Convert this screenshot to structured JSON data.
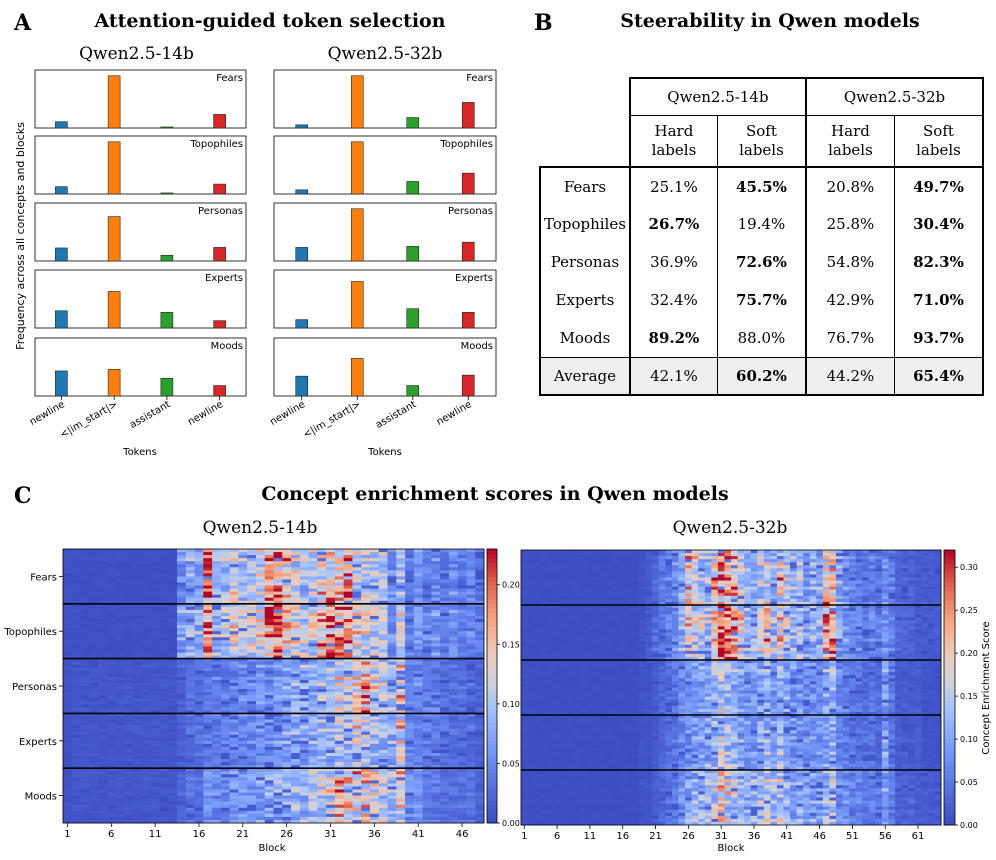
{
  "panel_a": {
    "letter": "A",
    "title": "Attention-guided token selection",
    "ylabel": "Frequency across all concepts and blocks",
    "xlabel": "Tokens"
  },
  "panel_b": {
    "letter": "B",
    "title": "Steerability in Qwen models"
  },
  "panel_c": {
    "letter": "C",
    "title": "Concept enrichment scores in Qwen models",
    "xlabel": "Block",
    "cbar_label": "Concept Enrichment Score"
  },
  "colors": {
    "newline1": "#1f77b4",
    "im_start": "#ff7f0e",
    "assistant": "#2ca02c",
    "newline2": "#d62728"
  },
  "chart_data": [
    {
      "type": "bar",
      "id": "token-selection-qwen14b",
      "title": "Qwen2.5-14b",
      "xlabel": "Tokens",
      "ylabel": "Frequency across all concepts and blocks",
      "categories": [
        "newline",
        "<|im_start|>",
        "assistant",
        "newline"
      ],
      "subplots": [
        {
          "label": "Fears",
          "values": [
            0.12,
            1.0,
            0.02,
            0.26
          ]
        },
        {
          "label": "Topophiles",
          "values": [
            0.14,
            1.0,
            0.02,
            0.19
          ]
        },
        {
          "label": "Personas",
          "values": [
            0.25,
            0.85,
            0.11,
            0.26
          ]
        },
        {
          "label": "Experts",
          "values": [
            0.33,
            0.7,
            0.3,
            0.14
          ]
        },
        {
          "label": "Moods",
          "values": [
            0.48,
            0.51,
            0.34,
            0.2
          ]
        }
      ]
    },
    {
      "type": "bar",
      "id": "token-selection-qwen32b",
      "title": "Qwen2.5-32b",
      "xlabel": "Tokens",
      "ylabel": "Frequency across all concepts and blocks",
      "categories": [
        "newline",
        "<|im_start|>",
        "assistant",
        "newline"
      ],
      "subplots": [
        {
          "label": "Fears",
          "values": [
            0.06,
            1.0,
            0.2,
            0.49
          ]
        },
        {
          "label": "Topophiles",
          "values": [
            0.08,
            1.0,
            0.24,
            0.4
          ]
        },
        {
          "label": "Personas",
          "values": [
            0.26,
            1.0,
            0.28,
            0.36
          ]
        },
        {
          "label": "Experts",
          "values": [
            0.16,
            0.89,
            0.37,
            0.3
          ]
        },
        {
          "label": "Moods",
          "values": [
            0.38,
            0.72,
            0.2,
            0.4
          ]
        }
      ]
    },
    {
      "type": "table",
      "id": "steerability-table",
      "title": "Steerability in Qwen models",
      "models": [
        "Qwen2.5-14b",
        "Qwen2.5-32b"
      ],
      "sublabels": [
        [
          "Hard",
          "labels"
        ],
        [
          "Soft",
          "labels"
        ],
        [
          "Hard",
          "labels"
        ],
        [
          "Soft",
          "labels"
        ]
      ],
      "rows": [
        {
          "concept": "Fears",
          "values": [
            "25.1%",
            "45.5%",
            "20.8%",
            "49.7%"
          ],
          "bold": [
            false,
            true,
            false,
            true
          ]
        },
        {
          "concept": "Topophiles",
          "values": [
            "26.7%",
            "19.4%",
            "25.8%",
            "30.4%"
          ],
          "bold": [
            true,
            false,
            false,
            true
          ]
        },
        {
          "concept": "Personas",
          "values": [
            "36.9%",
            "72.6%",
            "54.8%",
            "82.3%"
          ],
          "bold": [
            false,
            true,
            false,
            true
          ]
        },
        {
          "concept": "Experts",
          "values": [
            "32.4%",
            "75.7%",
            "42.9%",
            "71.0%"
          ],
          "bold": [
            false,
            true,
            false,
            true
          ]
        },
        {
          "concept": "Moods",
          "values": [
            "89.2%",
            "88.0%",
            "76.7%",
            "93.7%"
          ],
          "bold": [
            true,
            false,
            false,
            true
          ]
        },
        {
          "concept": "Average",
          "values": [
            "42.1%",
            "60.2%",
            "44.2%",
            "65.4%"
          ],
          "bold": [
            false,
            true,
            false,
            true
          ]
        }
      ]
    },
    {
      "type": "heatmap",
      "id": "enrichment-qwen14b",
      "title": "Qwen2.5-14b",
      "xlabel": "Block",
      "rows": [
        "Fears",
        "Topophiles",
        "Personas",
        "Experts",
        "Moods"
      ],
      "n_blocks": 48,
      "xticks": [
        "1",
        "6",
        "11",
        "16",
        "21",
        "26",
        "31",
        "36",
        "41",
        "46"
      ],
      "colorbar": {
        "min": 0,
        "max": 0.23,
        "ticks": [
          "0.00",
          "0.05",
          "0.10",
          "0.15",
          "0.20"
        ]
      },
      "profiles": {
        "Fears": [
          0.005,
          0.005,
          0.004,
          0.004,
          0.004,
          0.004,
          0.004,
          0.004,
          0.004,
          0.004,
          0.004,
          0.004,
          0.004,
          0.06,
          0.08,
          0.07,
          0.2,
          0.09,
          0.1,
          0.12,
          0.09,
          0.11,
          0.12,
          0.17,
          0.19,
          0.14,
          0.12,
          0.1,
          0.11,
          0.15,
          0.17,
          0.16,
          0.18,
          0.13,
          0.12,
          0.1,
          0.11,
          0.06,
          0.1,
          0.04,
          0.06,
          0.05,
          0.06,
          0.04,
          0.06,
          0.04,
          0.05,
          0.04
        ],
        "Topophiles": [
          0.005,
          0.005,
          0.004,
          0.004,
          0.004,
          0.004,
          0.004,
          0.004,
          0.004,
          0.004,
          0.004,
          0.004,
          0.004,
          0.07,
          0.09,
          0.08,
          0.19,
          0.1,
          0.11,
          0.13,
          0.1,
          0.12,
          0.13,
          0.2,
          0.21,
          0.15,
          0.13,
          0.11,
          0.12,
          0.17,
          0.19,
          0.17,
          0.17,
          0.13,
          0.12,
          0.11,
          0.12,
          0.06,
          0.11,
          0.05,
          0.06,
          0.05,
          0.06,
          0.04,
          0.06,
          0.04,
          0.05,
          0.04
        ],
        "Personas": [
          0.005,
          0.01,
          0.01,
          0.01,
          0.01,
          0.01,
          0.01,
          0.01,
          0.01,
          0.01,
          0.01,
          0.01,
          0.01,
          0.02,
          0.03,
          0.03,
          0.04,
          0.04,
          0.04,
          0.05,
          0.05,
          0.05,
          0.06,
          0.06,
          0.06,
          0.07,
          0.08,
          0.08,
          0.08,
          0.09,
          0.09,
          0.11,
          0.1,
          0.13,
          0.17,
          0.12,
          0.1,
          0.08,
          0.13,
          0.05,
          0.05,
          0.04,
          0.04,
          0.03,
          0.03,
          0.03,
          0.03,
          0.02
        ],
        "Experts": [
          0.005,
          0.01,
          0.01,
          0.01,
          0.01,
          0.01,
          0.01,
          0.01,
          0.01,
          0.01,
          0.01,
          0.01,
          0.01,
          0.02,
          0.03,
          0.03,
          0.04,
          0.04,
          0.04,
          0.05,
          0.05,
          0.05,
          0.06,
          0.06,
          0.06,
          0.07,
          0.08,
          0.08,
          0.08,
          0.09,
          0.09,
          0.11,
          0.1,
          0.12,
          0.13,
          0.1,
          0.09,
          0.08,
          0.13,
          0.05,
          0.05,
          0.04,
          0.04,
          0.03,
          0.03,
          0.03,
          0.03,
          0.02
        ],
        "Moods": [
          0.005,
          0.01,
          0.01,
          0.01,
          0.01,
          0.01,
          0.01,
          0.01,
          0.01,
          0.01,
          0.01,
          0.01,
          0.01,
          0.02,
          0.03,
          0.03,
          0.05,
          0.05,
          0.05,
          0.06,
          0.06,
          0.06,
          0.07,
          0.08,
          0.08,
          0.08,
          0.09,
          0.09,
          0.1,
          0.11,
          0.12,
          0.16,
          0.13,
          0.14,
          0.14,
          0.12,
          0.1,
          0.09,
          0.13,
          0.05,
          0.05,
          0.04,
          0.04,
          0.03,
          0.03,
          0.03,
          0.03,
          0.02
        ]
      }
    },
    {
      "type": "heatmap",
      "id": "enrichment-qwen32b",
      "title": "Qwen2.5-32b",
      "xlabel": "Block",
      "rows": [
        "Fears",
        "Topophiles",
        "Personas",
        "Experts",
        "Moods"
      ],
      "n_blocks": 64,
      "xticks": [
        "1",
        "6",
        "11",
        "16",
        "21",
        "26",
        "31",
        "36",
        "41",
        "46",
        "51",
        "56",
        "61"
      ],
      "colorbar": {
        "min": 0,
        "max": 0.32,
        "ticks": [
          "0.00",
          "0.05",
          "0.10",
          "0.15",
          "0.20",
          "0.25",
          "0.30"
        ]
      },
      "profiles": {
        "Fears": [
          0.004,
          0.004,
          0.004,
          0.004,
          0.004,
          0.004,
          0.004,
          0.004,
          0.004,
          0.004,
          0.004,
          0.004,
          0.004,
          0.004,
          0.004,
          0.004,
          0.004,
          0.004,
          0.01,
          0.02,
          0.04,
          0.05,
          0.06,
          0.08,
          0.12,
          0.2,
          0.18,
          0.16,
          0.15,
          0.2,
          0.27,
          0.24,
          0.22,
          0.16,
          0.13,
          0.12,
          0.15,
          0.17,
          0.12,
          0.19,
          0.14,
          0.12,
          0.14,
          0.1,
          0.12,
          0.11,
          0.2,
          0.22,
          0.1,
          0.08,
          0.06,
          0.06,
          0.05,
          0.06,
          0.05,
          0.08,
          0.06,
          0.03,
          0.03,
          0.03,
          0.02,
          0.02,
          0.02,
          0.02
        ],
        "Topophiles": [
          0.004,
          0.004,
          0.004,
          0.004,
          0.004,
          0.004,
          0.004,
          0.004,
          0.004,
          0.004,
          0.004,
          0.004,
          0.004,
          0.004,
          0.004,
          0.004,
          0.004,
          0.004,
          0.01,
          0.02,
          0.04,
          0.05,
          0.06,
          0.08,
          0.12,
          0.2,
          0.18,
          0.16,
          0.15,
          0.2,
          0.3,
          0.27,
          0.24,
          0.17,
          0.14,
          0.13,
          0.16,
          0.22,
          0.13,
          0.2,
          0.15,
          0.13,
          0.15,
          0.11,
          0.13,
          0.12,
          0.22,
          0.27,
          0.11,
          0.09,
          0.07,
          0.07,
          0.06,
          0.07,
          0.06,
          0.08,
          0.06,
          0.03,
          0.03,
          0.03,
          0.02,
          0.02,
          0.02,
          0.02
        ],
        "Personas": [
          0.004,
          0.004,
          0.004,
          0.004,
          0.004,
          0.004,
          0.004,
          0.004,
          0.004,
          0.004,
          0.004,
          0.004,
          0.004,
          0.004,
          0.004,
          0.004,
          0.004,
          0.004,
          0.01,
          0.01,
          0.02,
          0.03,
          0.04,
          0.05,
          0.07,
          0.08,
          0.09,
          0.1,
          0.1,
          0.12,
          0.16,
          0.13,
          0.12,
          0.1,
          0.09,
          0.1,
          0.1,
          0.12,
          0.1,
          0.12,
          0.1,
          0.09,
          0.09,
          0.08,
          0.08,
          0.08,
          0.1,
          0.12,
          0.07,
          0.06,
          0.05,
          0.05,
          0.04,
          0.05,
          0.04,
          0.1,
          0.05,
          0.02,
          0.02,
          0.02,
          0.02,
          0.01,
          0.01,
          0.01
        ],
        "Experts": [
          0.004,
          0.004,
          0.004,
          0.004,
          0.004,
          0.004,
          0.004,
          0.004,
          0.004,
          0.004,
          0.004,
          0.004,
          0.004,
          0.004,
          0.004,
          0.004,
          0.004,
          0.004,
          0.01,
          0.01,
          0.02,
          0.03,
          0.04,
          0.05,
          0.07,
          0.08,
          0.09,
          0.1,
          0.1,
          0.12,
          0.15,
          0.13,
          0.12,
          0.1,
          0.09,
          0.1,
          0.1,
          0.12,
          0.1,
          0.12,
          0.1,
          0.09,
          0.09,
          0.08,
          0.08,
          0.08,
          0.1,
          0.12,
          0.07,
          0.06,
          0.05,
          0.05,
          0.04,
          0.05,
          0.04,
          0.1,
          0.05,
          0.02,
          0.02,
          0.02,
          0.02,
          0.01,
          0.01,
          0.01
        ],
        "Moods": [
          0.004,
          0.004,
          0.004,
          0.004,
          0.004,
          0.004,
          0.004,
          0.004,
          0.004,
          0.004,
          0.004,
          0.004,
          0.004,
          0.004,
          0.004,
          0.004,
          0.004,
          0.004,
          0.01,
          0.01,
          0.02,
          0.03,
          0.04,
          0.05,
          0.08,
          0.1,
          0.11,
          0.12,
          0.12,
          0.15,
          0.2,
          0.16,
          0.14,
          0.12,
          0.11,
          0.12,
          0.13,
          0.15,
          0.12,
          0.14,
          0.12,
          0.1,
          0.11,
          0.09,
          0.1,
          0.09,
          0.12,
          0.14,
          0.08,
          0.07,
          0.06,
          0.06,
          0.05,
          0.06,
          0.05,
          0.1,
          0.05,
          0.03,
          0.03,
          0.03,
          0.02,
          0.02,
          0.02,
          0.02
        ]
      }
    }
  ]
}
